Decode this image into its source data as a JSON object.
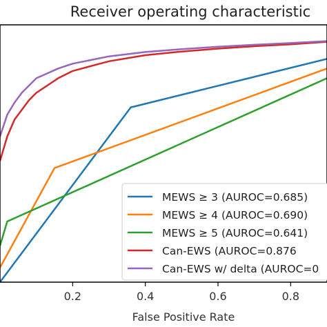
{
  "chart_data": {
    "type": "line",
    "title": "Receiver operating characteristic",
    "xlabel": "False Positive Rate",
    "ylabel": "",
    "xlim": [
      0.0,
      0.9
    ],
    "ylim": [
      0.0,
      1.06
    ],
    "xticks": [
      "0.2",
      "0.4",
      "0.6",
      "0.8"
    ],
    "xtick_values": [
      0.2,
      0.4,
      0.6,
      0.8
    ],
    "legend_position": "lower right",
    "series": [
      {
        "name": "MEWS ≥ 3 (AUROC=0.685)",
        "color": "#1f77b4",
        "x": [
          0.0,
          0.36,
          0.9
        ],
        "y": [
          0.0,
          0.72,
          0.92
        ]
      },
      {
        "name": "MEWS ≥ 4 (AUROC=0.690)",
        "color": "#ff7f0e",
        "x": [
          0.0,
          0.15,
          0.9
        ],
        "y": [
          0.06,
          0.47,
          0.88
        ]
      },
      {
        "name": "MEWS ≥ 5 (AUROC=0.641)",
        "color": "#2ca02c",
        "x": [
          0.0,
          0.02,
          0.9
        ],
        "y": [
          0.15,
          0.25,
          0.84
        ]
      },
      {
        "name": "Can-EWS (AUROC=0.876",
        "color": "#d62728",
        "x": [
          0.0,
          0.02,
          0.04,
          0.06,
          0.08,
          0.1,
          0.13,
          0.16,
          0.2,
          0.25,
          0.3,
          0.4,
          0.5,
          0.6,
          0.7,
          0.8,
          0.9
        ],
        "y": [
          0.5,
          0.6,
          0.67,
          0.71,
          0.75,
          0.78,
          0.81,
          0.84,
          0.87,
          0.89,
          0.91,
          0.935,
          0.95,
          0.962,
          0.972,
          0.98,
          0.99
        ]
      },
      {
        "name": "Can-EWS w/ delta (AUROC=0",
        "color": "#9467bd",
        "x": [
          0.0,
          0.02,
          0.04,
          0.06,
          0.08,
          0.1,
          0.13,
          0.16,
          0.2,
          0.25,
          0.3,
          0.4,
          0.5,
          0.6,
          0.7,
          0.8,
          0.9
        ],
        "y": [
          0.6,
          0.69,
          0.74,
          0.78,
          0.81,
          0.84,
          0.86,
          0.88,
          0.9,
          0.915,
          0.93,
          0.948,
          0.96,
          0.97,
          0.978,
          0.985,
          0.993
        ]
      }
    ]
  }
}
